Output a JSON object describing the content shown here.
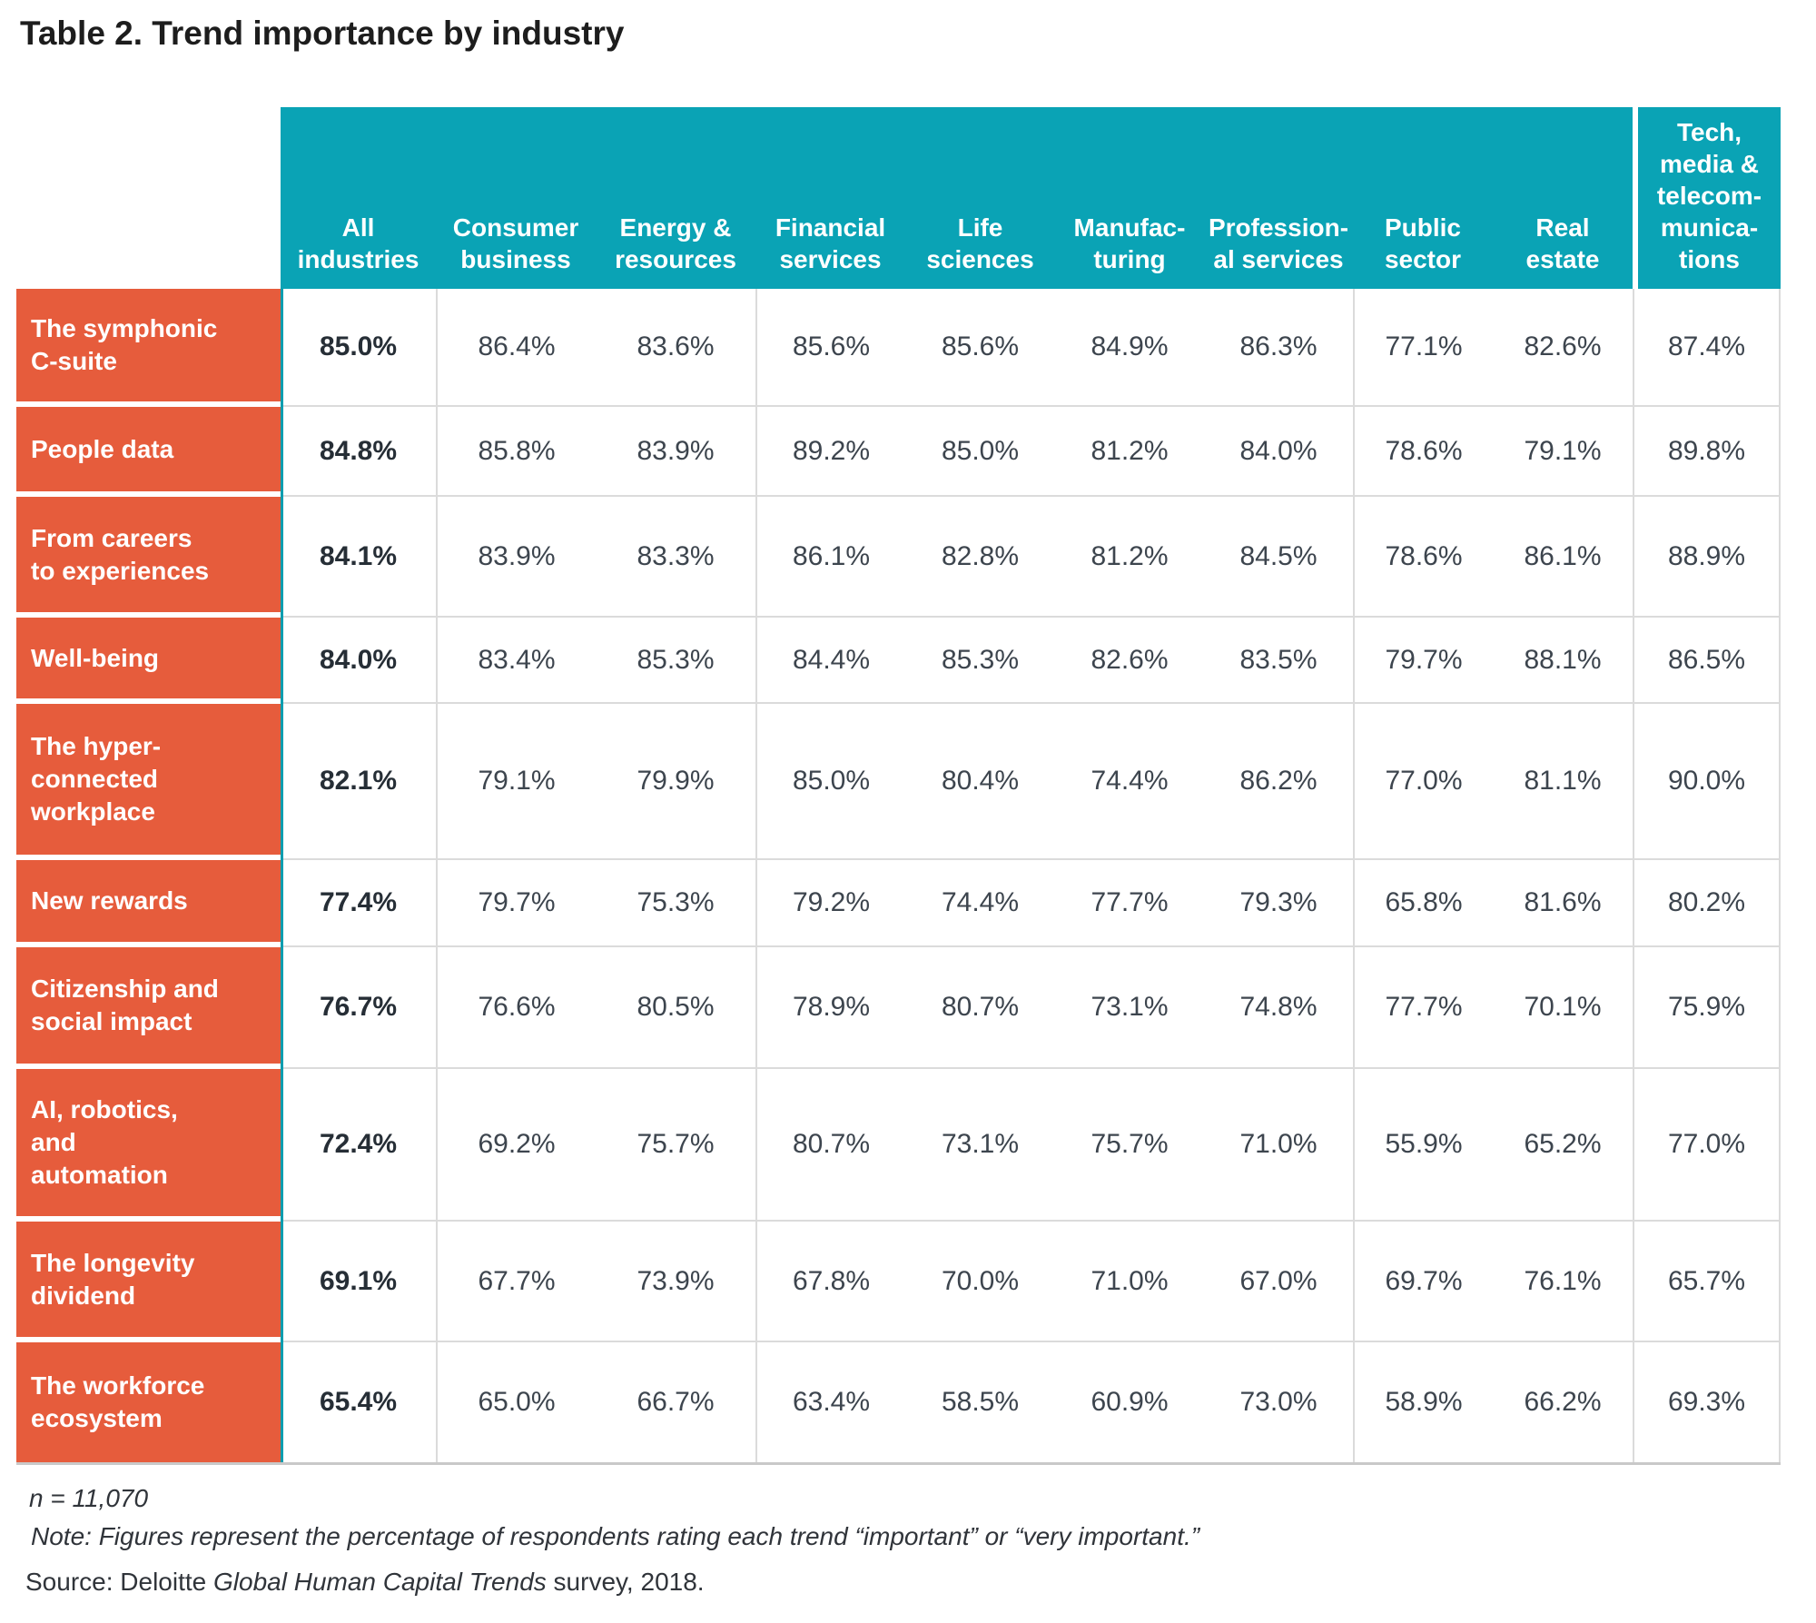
{
  "title": "Table 2. Trend importance by industry",
  "colors": {
    "header_bg": "#0AA3B5",
    "row_label_bg": "#E65C3C",
    "accent_line": "#0C9DAF",
    "grid_line": "#DBDBDB",
    "bottom_border": "#C9C9C9",
    "value_text": "#3D454E",
    "value_text_bold": "#262E36"
  },
  "chart_data": {
    "type": "table",
    "title": "Table 2. Trend importance by industry",
    "unit": "%",
    "columns": [
      "All industries",
      "Consumer business",
      "Energy & resources",
      "Financial services",
      "Life sciences",
      "Manufacturing",
      "Professional services",
      "Public sector",
      "Real estate",
      "Tech, media & telecommunications"
    ],
    "column_header_lines": [
      [
        "All",
        "industries"
      ],
      [
        "Consumer",
        "business"
      ],
      [
        "Energy &",
        "resources"
      ],
      [
        "Financial",
        "services"
      ],
      [
        "Life",
        "sciences"
      ],
      [
        "Manufac-",
        "turing"
      ],
      [
        "Profession-",
        "al services"
      ],
      [
        "Public",
        "sector"
      ],
      [
        "Real",
        "estate"
      ],
      [
        "Tech,",
        "media &",
        "telecom-",
        "munica-",
        "tions"
      ]
    ],
    "rows": [
      {
        "label": "The symphonic C-suite",
        "label_lines": [
          "The symphonic",
          "C-suite"
        ],
        "values": [
          85.0,
          86.4,
          83.6,
          85.6,
          85.6,
          84.9,
          86.3,
          77.1,
          82.6,
          87.4
        ]
      },
      {
        "label": "People data",
        "label_lines": [
          "People data"
        ],
        "values": [
          84.8,
          85.8,
          83.9,
          89.2,
          85.0,
          81.2,
          84.0,
          78.6,
          79.1,
          89.8
        ]
      },
      {
        "label": "From careers to experiences",
        "label_lines": [
          "From careers",
          "to experiences"
        ],
        "values": [
          84.1,
          83.9,
          83.3,
          86.1,
          82.8,
          81.2,
          84.5,
          78.6,
          86.1,
          88.9
        ]
      },
      {
        "label": "Well-being",
        "label_lines": [
          "Well-being"
        ],
        "values": [
          84.0,
          83.4,
          85.3,
          84.4,
          85.3,
          82.6,
          83.5,
          79.7,
          88.1,
          86.5
        ]
      },
      {
        "label": "The hyper-connected workplace",
        "label_lines": [
          "The hyper-",
          "connected",
          "workplace"
        ],
        "values": [
          82.1,
          79.1,
          79.9,
          85.0,
          80.4,
          74.4,
          86.2,
          77.0,
          81.1,
          90.0
        ]
      },
      {
        "label": "New rewards",
        "label_lines": [
          "New rewards"
        ],
        "values": [
          77.4,
          79.7,
          75.3,
          79.2,
          74.4,
          77.7,
          79.3,
          65.8,
          81.6,
          80.2
        ]
      },
      {
        "label": "Citizenship and social impact",
        "label_lines": [
          "Citizenship and",
          "social impact"
        ],
        "values": [
          76.7,
          76.6,
          80.5,
          78.9,
          80.7,
          73.1,
          74.8,
          77.7,
          70.1,
          75.9
        ]
      },
      {
        "label": "AI, robotics, and automation",
        "label_lines": [
          "AI, robotics,",
          "and",
          "automation"
        ],
        "values": [
          72.4,
          69.2,
          75.7,
          80.7,
          73.1,
          75.7,
          71.0,
          55.9,
          65.2,
          77.0
        ]
      },
      {
        "label": "The longevity dividend",
        "label_lines": [
          "The longevity",
          "dividend"
        ],
        "values": [
          69.1,
          67.7,
          73.9,
          67.8,
          70.0,
          71.0,
          67.0,
          69.7,
          76.1,
          65.7
        ]
      },
      {
        "label": "The workforce ecosystem",
        "label_lines": [
          "The workforce",
          "ecosystem"
        ],
        "values": [
          65.4,
          65.0,
          66.7,
          63.4,
          58.5,
          60.9,
          73.0,
          58.9,
          66.2,
          69.3
        ]
      }
    ]
  },
  "footer": {
    "n_label": "n = 11,070",
    "note": "Note: Figures represent the percentage of respondents rating each trend “important” or “very important.”",
    "source_prefix": "Source: Deloitte ",
    "source_italic": "Global Human Capital Trends",
    "source_suffix": " survey, 2018."
  }
}
